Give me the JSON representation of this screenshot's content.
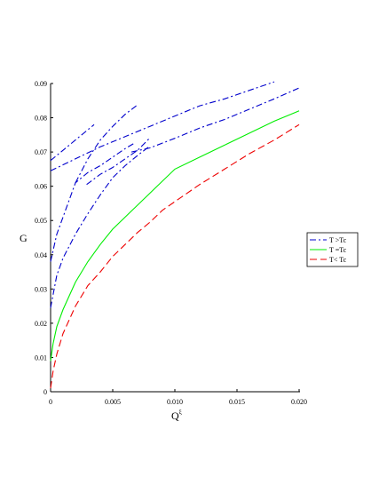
{
  "chart_data": {
    "type": "line",
    "xlabel": "Q",
    "xlabel_superscript": "ξ",
    "ylabel": "G",
    "xlim": [
      0,
      0.02
    ],
    "ylim": [
      0,
      0.09
    ],
    "xticks": [
      "0",
      "0.005",
      "0.010",
      "0.015",
      "0.020"
    ],
    "xtick_values": [
      0,
      0.005,
      0.01,
      0.015,
      0.02
    ],
    "yticks": [
      "0",
      "0.01",
      "0.02",
      "0.03",
      "0.04",
      "0.05",
      "0.06",
      "0.07",
      "0.08",
      "0.09"
    ],
    "ytick_values": [
      0,
      0.01,
      0.02,
      0.03,
      0.04,
      0.05,
      0.06,
      0.07,
      0.08,
      0.09
    ],
    "grid": false,
    "legend_position": "right",
    "series": [
      {
        "name": "T >Tc",
        "color": "#0000cc",
        "style": "dashdot",
        "segments": [
          {
            "x": [
              0,
              0.0005,
              0.001,
              0.0015,
              0.002,
              0.003,
              0.004,
              0.005,
              0.006,
              0.0067
            ],
            "y": [
              0.038,
              0.046,
              0.051,
              0.056,
              0.061,
              0.064,
              0.066,
              0.0685,
              0.071,
              0.0725
            ]
          },
          {
            "x": [
              0.002,
              0.003,
              0.004,
              0.005,
              0.006,
              0.0069
            ],
            "y": [
              0.061,
              0.068,
              0.0735,
              0.0775,
              0.081,
              0.0835
            ]
          },
          {
            "x": [
              0,
              0.001,
              0.002,
              0.003,
              0.0035
            ],
            "y": [
              0.0675,
              0.0705,
              0.0735,
              0.0765,
              0.078
            ]
          },
          {
            "x": [
              0,
              0.0005,
              0.001,
              0.002,
              0.003,
              0.004,
              0.005,
              0.006,
              0.007,
              0.0079
            ],
            "y": [
              0.0245,
              0.034,
              0.039,
              0.046,
              0.052,
              0.0575,
              0.0625,
              0.066,
              0.069,
              0.0715
            ]
          },
          {
            "x": [
              0.0029,
              0.004,
              0.005,
              0.006,
              0.007,
              0.0079
            ],
            "y": [
              0.0605,
              0.0635,
              0.0655,
              0.068,
              0.0705,
              0.0738
            ]
          },
          {
            "x": [
              0,
              0.002,
              0.004,
              0.006,
              0.008,
              0.01,
              0.012,
              0.014,
              0.016,
              0.018
            ],
            "y": [
              0.0645,
              0.068,
              0.0715,
              0.0745,
              0.0775,
              0.0805,
              0.0835,
              0.0855,
              0.088,
              0.0905
            ]
          },
          {
            "x": [
              0.0065,
              0.008,
              0.01,
              0.012,
              0.014,
              0.016,
              0.018,
              0.02
            ],
            "y": [
              0.07,
              0.0712,
              0.074,
              0.077,
              0.0795,
              0.0825,
              0.0855,
              0.0887
            ]
          }
        ]
      },
      {
        "name": "T =Tc",
        "color": "#00ee00",
        "style": "solid",
        "segments": [
          {
            "x": [
              0,
              0.0002,
              0.0005,
              0.001,
              0.002,
              0.003,
              0.004,
              0.005,
              0.006,
              0.007,
              0.008,
              0.009,
              0.01,
              0.012,
              0.014,
              0.016,
              0.018,
              0.02
            ],
            "y": [
              0.009,
              0.014,
              0.019,
              0.024,
              0.032,
              0.038,
              0.043,
              0.0475,
              0.051,
              0.0545,
              0.058,
              0.0615,
              0.065,
              0.0685,
              0.072,
              0.0755,
              0.079,
              0.082
            ]
          }
        ]
      },
      {
        "name": "T< Tc",
        "color": "#ee0000",
        "style": "dashed",
        "segments": [
          {
            "x": [
              0,
              0.0002,
              0.0005,
              0.001,
              0.002,
              0.003,
              0.004,
              0.005,
              0.006,
              0.007,
              0.008,
              0.009,
              0.01,
              0.012,
              0.014,
              0.016,
              0.018,
              0.02
            ],
            "y": [
              0.001,
              0.006,
              0.011,
              0.017,
              0.025,
              0.031,
              0.035,
              0.0395,
              0.043,
              0.0465,
              0.0495,
              0.053,
              0.0555,
              0.0605,
              0.065,
              0.0695,
              0.0735,
              0.078
            ]
          }
        ]
      }
    ]
  }
}
